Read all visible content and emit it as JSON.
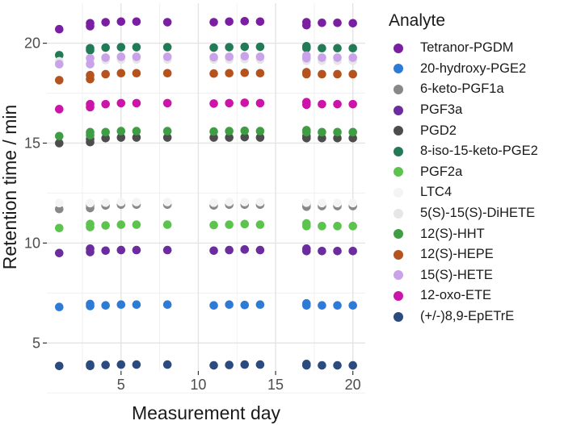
{
  "chart_data": {
    "type": "scatter",
    "title": "",
    "xlabel": "Measurement day",
    "ylabel": "Retention time / min",
    "xlim": [
      0.2,
      20.8
    ],
    "ylim": [
      3.6,
      22.0
    ],
    "x_ticks": [
      5,
      10,
      15,
      20
    ],
    "y_ticks": [
      5,
      10,
      15,
      20
    ],
    "x_tick_labels": [
      "5",
      "10",
      "15",
      "20"
    ],
    "y_tick_labels": [
      "5",
      "10",
      "15",
      "20"
    ],
    "grid": true,
    "legend_position": "right",
    "legend_title": "Analyte",
    "days": [
      1,
      3,
      4,
      5,
      6,
      8,
      11,
      12,
      13,
      14,
      17,
      18,
      19,
      20
    ],
    "series": [
      {
        "name": "Tetranor-PGDM",
        "color": "#7b1fa2",
        "points": [
          [
            1,
            20.7
          ],
          [
            3,
            21.0
          ],
          [
            3,
            20.85
          ],
          [
            4,
            21.05
          ],
          [
            5,
            21.08
          ],
          [
            6,
            21.08
          ],
          [
            8,
            21.05
          ],
          [
            11,
            21.05
          ],
          [
            12,
            21.08
          ],
          [
            13,
            21.1
          ],
          [
            14,
            21.08
          ],
          [
            17,
            21.05
          ],
          [
            17,
            20.9
          ],
          [
            18,
            21.02
          ],
          [
            19,
            21.02
          ],
          [
            20,
            21.0
          ]
        ]
      },
      {
        "name": "20-hydroxy-PGE2",
        "color": "#2e7bd6",
        "points": [
          [
            1,
            6.8
          ],
          [
            3,
            6.85
          ],
          [
            3,
            6.95
          ],
          [
            4,
            6.88
          ],
          [
            5,
            6.92
          ],
          [
            6,
            6.92
          ],
          [
            8,
            6.92
          ],
          [
            11,
            6.88
          ],
          [
            12,
            6.92
          ],
          [
            13,
            6.9
          ],
          [
            14,
            6.92
          ],
          [
            17,
            6.88
          ],
          [
            17,
            6.98
          ],
          [
            18,
            6.88
          ],
          [
            19,
            6.88
          ],
          [
            20,
            6.88
          ]
        ]
      },
      {
        "name": "6-keto-PGF1a",
        "color": "#888888",
        "points": [
          [
            1,
            11.7
          ],
          [
            3,
            11.75
          ],
          [
            3,
            11.9
          ],
          [
            4,
            11.88
          ],
          [
            5,
            11.92
          ],
          [
            6,
            11.92
          ],
          [
            8,
            11.92
          ],
          [
            11,
            11.88
          ],
          [
            12,
            11.92
          ],
          [
            13,
            11.92
          ],
          [
            14,
            11.92
          ],
          [
            17,
            11.82
          ],
          [
            17,
            11.95
          ],
          [
            18,
            11.85
          ],
          [
            19,
            11.85
          ],
          [
            20,
            11.85
          ]
        ]
      },
      {
        "name": "PGF3a",
        "color": "#6a2c9e",
        "points": [
          [
            1,
            9.5
          ],
          [
            3,
            9.55
          ],
          [
            3,
            9.72
          ],
          [
            4,
            9.62
          ],
          [
            5,
            9.65
          ],
          [
            6,
            9.65
          ],
          [
            8,
            9.65
          ],
          [
            11,
            9.62
          ],
          [
            12,
            9.65
          ],
          [
            13,
            9.68
          ],
          [
            14,
            9.65
          ],
          [
            17,
            9.6
          ],
          [
            17,
            9.72
          ],
          [
            18,
            9.6
          ],
          [
            19,
            9.6
          ],
          [
            20,
            9.6
          ]
        ]
      },
      {
        "name": "PGD2",
        "color": "#4d4d4d",
        "points": [
          [
            1,
            15.0
          ],
          [
            3,
            15.05
          ],
          [
            3,
            15.2
          ],
          [
            4,
            15.25
          ],
          [
            5,
            15.28
          ],
          [
            6,
            15.28
          ],
          [
            8,
            15.28
          ],
          [
            11,
            15.28
          ],
          [
            12,
            15.28
          ],
          [
            13,
            15.3
          ],
          [
            14,
            15.28
          ],
          [
            17,
            15.25
          ],
          [
            17,
            15.35
          ],
          [
            18,
            15.25
          ],
          [
            19,
            15.25
          ],
          [
            20,
            15.25
          ]
        ]
      },
      {
        "name": "8-iso-15-keto-PGE2",
        "color": "#237a57",
        "points": [
          [
            1,
            19.4
          ],
          [
            3,
            19.65
          ],
          [
            3,
            19.75
          ],
          [
            4,
            19.78
          ],
          [
            5,
            19.8
          ],
          [
            6,
            19.8
          ],
          [
            8,
            19.8
          ],
          [
            11,
            19.78
          ],
          [
            12,
            19.8
          ],
          [
            13,
            19.82
          ],
          [
            14,
            19.82
          ],
          [
            17,
            19.75
          ],
          [
            17,
            19.85
          ],
          [
            18,
            19.75
          ],
          [
            19,
            19.75
          ],
          [
            20,
            19.75
          ]
        ]
      },
      {
        "name": "PGF2a",
        "color": "#5cc44e",
        "points": [
          [
            1,
            10.75
          ],
          [
            3,
            10.8
          ],
          [
            3,
            10.95
          ],
          [
            4,
            10.88
          ],
          [
            5,
            10.92
          ],
          [
            6,
            10.92
          ],
          [
            8,
            10.92
          ],
          [
            11,
            10.9
          ],
          [
            12,
            10.92
          ],
          [
            13,
            10.95
          ],
          [
            14,
            10.92
          ],
          [
            17,
            10.85
          ],
          [
            17,
            10.98
          ],
          [
            18,
            10.85
          ],
          [
            19,
            10.85
          ],
          [
            20,
            10.85
          ]
        ]
      },
      {
        "name": "LTC4",
        "color": "#f4f4f4",
        "points": [
          [
            1,
            12.0
          ],
          [
            3,
            12.0
          ],
          [
            4,
            12.02
          ],
          [
            5,
            12.05
          ],
          [
            6,
            12.05
          ],
          [
            8,
            12.05
          ],
          [
            11,
            12.02
          ],
          [
            12,
            12.05
          ],
          [
            13,
            12.05
          ],
          [
            14,
            12.05
          ],
          [
            17,
            12.02
          ],
          [
            18,
            12.0
          ],
          [
            19,
            12.0
          ],
          [
            20,
            12.0
          ]
        ]
      },
      {
        "name": "5(S)-15(S)-DiHETE",
        "color": "#e6e6e6",
        "points": [
          [
            1,
            19.1
          ],
          [
            3,
            19.05
          ],
          [
            4,
            19.15
          ],
          [
            5,
            19.18
          ],
          [
            6,
            19.18
          ],
          [
            8,
            19.18
          ],
          [
            11,
            19.18
          ],
          [
            12,
            19.18
          ],
          [
            13,
            19.2
          ],
          [
            14,
            19.18
          ],
          [
            17,
            19.12
          ],
          [
            18,
            19.12
          ],
          [
            19,
            19.12
          ],
          [
            20,
            19.12
          ]
        ]
      },
      {
        "name": "12(S)-HHT",
        "color": "#3f9e44",
        "points": [
          [
            1,
            15.35
          ],
          [
            3,
            15.4
          ],
          [
            3,
            15.55
          ],
          [
            4,
            15.55
          ],
          [
            5,
            15.6
          ],
          [
            6,
            15.6
          ],
          [
            8,
            15.6
          ],
          [
            11,
            15.58
          ],
          [
            12,
            15.6
          ],
          [
            13,
            15.62
          ],
          [
            14,
            15.6
          ],
          [
            17,
            15.55
          ],
          [
            17,
            15.65
          ],
          [
            18,
            15.55
          ],
          [
            19,
            15.55
          ],
          [
            20,
            15.55
          ]
        ]
      },
      {
        "name": "12(S)-HEPE",
        "color": "#b5531e",
        "points": [
          [
            1,
            18.15
          ],
          [
            3,
            18.2
          ],
          [
            3,
            18.4
          ],
          [
            4,
            18.45
          ],
          [
            5,
            18.5
          ],
          [
            6,
            18.5
          ],
          [
            8,
            18.5
          ],
          [
            11,
            18.48
          ],
          [
            12,
            18.5
          ],
          [
            13,
            18.52
          ],
          [
            14,
            18.5
          ],
          [
            17,
            18.45
          ],
          [
            17,
            18.55
          ],
          [
            18,
            18.45
          ],
          [
            19,
            18.45
          ],
          [
            20,
            18.45
          ]
        ]
      },
      {
        "name": "15(S)-HETE",
        "color": "#c9a2ea",
        "points": [
          [
            1,
            18.95
          ],
          [
            3,
            18.95
          ],
          [
            3,
            19.25
          ],
          [
            4,
            19.28
          ],
          [
            5,
            19.32
          ],
          [
            6,
            19.32
          ],
          [
            8,
            19.32
          ],
          [
            11,
            19.3
          ],
          [
            12,
            19.32
          ],
          [
            13,
            19.35
          ],
          [
            14,
            19.32
          ],
          [
            17,
            19.25
          ],
          [
            17,
            19.38
          ],
          [
            18,
            19.28
          ],
          [
            19,
            19.28
          ],
          [
            20,
            19.28
          ]
        ]
      },
      {
        "name": "12-oxo-ETE",
        "color": "#cc14a8",
        "points": [
          [
            1,
            16.7
          ],
          [
            3,
            16.8
          ],
          [
            3,
            16.95
          ],
          [
            4,
            16.95
          ],
          [
            5,
            17.0
          ],
          [
            6,
            17.0
          ],
          [
            8,
            17.0
          ],
          [
            11,
            16.98
          ],
          [
            12,
            17.0
          ],
          [
            13,
            17.02
          ],
          [
            14,
            17.0
          ],
          [
            17,
            16.92
          ],
          [
            17,
            17.05
          ],
          [
            18,
            16.95
          ],
          [
            19,
            16.95
          ],
          [
            20,
            16.95
          ]
        ]
      },
      {
        "name": "(+/-)8,9-EpETrE",
        "color": "#2b4a7e",
        "points": [
          [
            1,
            3.85
          ],
          [
            3,
            3.85
          ],
          [
            3,
            3.92
          ],
          [
            4,
            3.9
          ],
          [
            5,
            3.92
          ],
          [
            6,
            3.92
          ],
          [
            8,
            3.92
          ],
          [
            11,
            3.88
          ],
          [
            12,
            3.9
          ],
          [
            13,
            3.92
          ],
          [
            14,
            3.92
          ],
          [
            17,
            3.88
          ],
          [
            17,
            3.95
          ],
          [
            18,
            3.88
          ],
          [
            19,
            3.88
          ],
          [
            20,
            3.88
          ]
        ]
      }
    ]
  }
}
